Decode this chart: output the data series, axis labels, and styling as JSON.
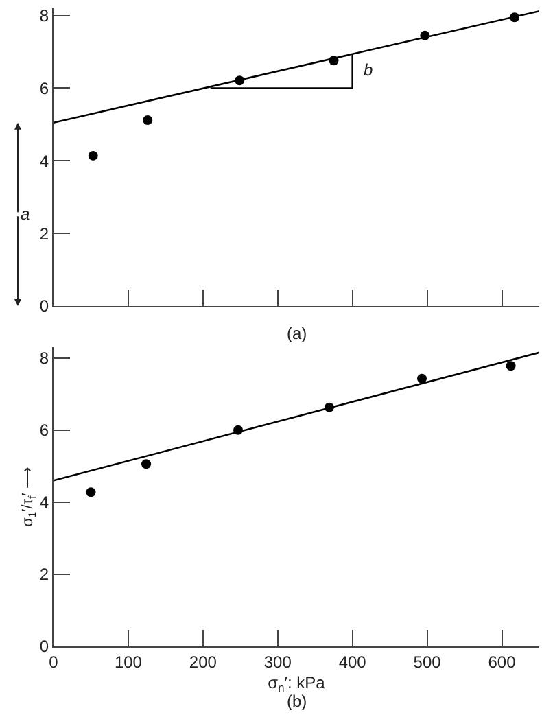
{
  "chart_data": [
    {
      "type": "scatter",
      "xlim": [
        0,
        650
      ],
      "ylim": [
        0,
        8.2
      ],
      "xticks": [
        {
          "value": 100,
          "label": null
        },
        {
          "value": 200,
          "label": null
        },
        {
          "value": 300,
          "label": null
        },
        {
          "value": 400,
          "label": null
        },
        {
          "value": 500,
          "label": null
        },
        {
          "value": 600,
          "label": null
        }
      ],
      "yticks": [
        0,
        2,
        4,
        6,
        8
      ],
      "tick_labels": "y",
      "series": [
        {
          "marker": "circle",
          "color": "#000000",
          "x": [
            53,
            126,
            249,
            375,
            497,
            617
          ],
          "values": [
            4.14,
            5.12,
            6.21,
            6.76,
            7.45,
            7.95
          ]
        },
        {
          "type": "line",
          "marker": "none",
          "color": "#000000",
          "x": [
            0,
            650
          ],
          "values": [
            5.05,
            8.12
          ]
        },
        {
          "type": "line",
          "marker": "none",
          "color": "#000000",
          "x": [
            210,
            400,
            400
          ],
          "values": [
            6.0,
            6.0,
            6.95
          ]
        }
      ],
      "annotations": [
        "a",
        {
          "text": "b",
          "x": 400,
          "y": 6.5
        },
        "(a)"
      ]
    },
    {
      "type": "scatter",
      "xlim": [
        0,
        650
      ],
      "ylim": [
        0,
        8.3
      ],
      "xticks": [
        0,
        100,
        200,
        300,
        400,
        500,
        600
      ],
      "yticks": [
        0,
        2,
        4,
        6,
        8
      ],
      "xlabel": "σ$_{n}$′: kPa",
      "ylabel": "σ$_{1}$′/τ$_{f}$′ ⟶",
      "series": [
        {
          "marker": "circle",
          "color": "#000000",
          "x": [
            50,
            124,
            247,
            369,
            493,
            612
          ],
          "values": [
            4.28,
            5.06,
            6.0,
            6.63,
            7.43,
            7.78
          ]
        },
        {
          "type": "line",
          "marker": "none",
          "color": "#000000",
          "x": [
            0,
            650
          ],
          "values": [
            4.6,
            8.15
          ]
        }
      ],
      "annotations": [
        "(b)"
      ]
    }
  ]
}
